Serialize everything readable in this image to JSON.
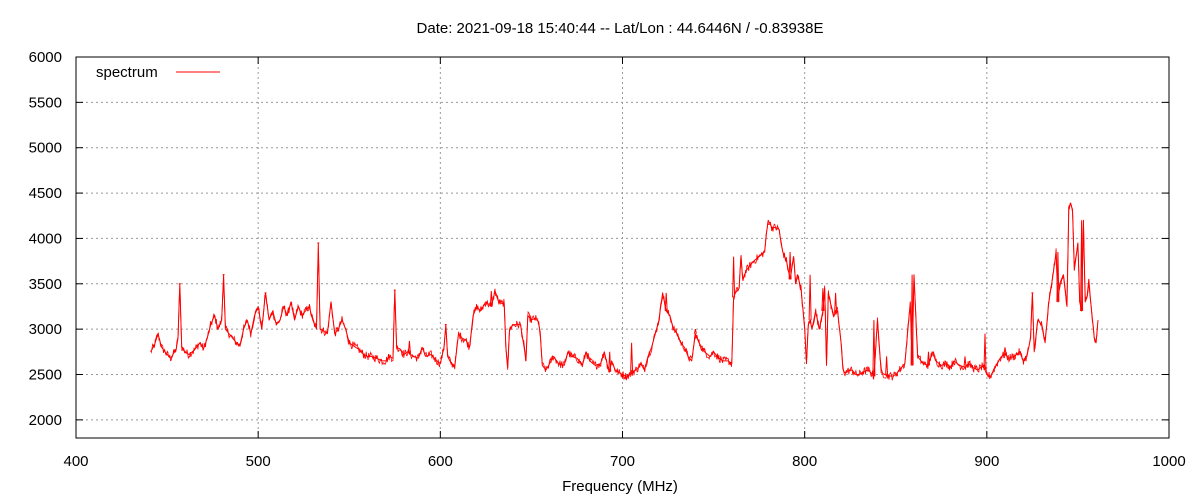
{
  "chart_data": {
    "type": "line",
    "title": "Date: 2021-09-18 15:40:44  --  Lat/Lon : 44.6446N / -0.83938E",
    "xlabel": "Frequency (MHz)",
    "ylabel": "",
    "xlim": [
      400,
      1000
    ],
    "ylim": [
      1800,
      6000
    ],
    "xticks": [
      400,
      500,
      600,
      700,
      800,
      900,
      1000
    ],
    "yticks": [
      2000,
      2500,
      3000,
      3500,
      4000,
      4500,
      5000,
      5500,
      6000
    ],
    "grid": true,
    "legend_position": "top-left",
    "series": [
      {
        "name": "spectrum",
        "color": "#ff0000",
        "x": [
          441,
          443,
          445,
          447,
          450,
          452,
          455,
          456,
          457,
          458,
          460,
          462,
          465,
          468,
          470,
          472,
          474,
          476,
          478,
          480,
          481,
          482,
          484,
          486,
          488,
          490,
          492,
          494,
          496,
          498,
          500,
          502,
          504,
          506,
          508,
          510,
          512,
          514,
          516,
          518,
          520,
          522,
          524,
          526,
          528,
          530,
          532,
          533,
          534,
          536,
          538,
          540,
          542,
          544,
          546,
          548,
          550,
          552,
          555,
          558,
          560,
          562,
          565,
          568,
          570,
          572,
          574,
          575,
          576,
          578,
          580,
          582,
          585,
          588,
          590,
          592,
          595,
          598,
          600,
          602,
          603,
          604,
          606,
          608,
          610,
          612,
          614,
          616,
          618,
          620,
          622,
          625,
          628,
          630,
          632,
          634,
          635,
          636,
          637,
          638,
          640,
          642,
          644,
          646,
          647,
          648,
          650,
          652,
          654,
          655,
          656,
          658,
          660,
          662,
          665,
          668,
          670,
          672,
          675,
          678,
          680,
          682,
          685,
          688,
          690,
          692,
          693,
          694,
          696,
          698,
          700,
          702,
          704,
          706,
          708,
          710,
          712,
          714,
          716,
          718,
          720,
          722,
          724,
          726,
          728,
          730,
          732,
          734,
          736,
          738,
          740,
          742,
          745,
          748,
          750,
          752,
          755,
          758,
          760,
          761,
          762,
          764,
          765,
          766,
          768,
          770,
          772,
          775,
          778,
          779,
          780,
          782,
          784,
          786,
          787,
          788,
          790,
          792,
          794,
          795,
          796,
          798,
          800,
          801,
          802,
          803,
          804,
          806,
          808,
          810,
          811,
          812,
          813,
          814,
          816,
          818,
          820,
          821,
          822,
          824,
          826,
          828,
          830,
          832,
          835,
          838,
          840,
          842,
          845,
          848,
          850,
          852,
          855,
          858,
          859,
          860,
          862,
          865,
          868,
          870,
          872,
          875,
          878,
          880,
          882,
          885,
          888,
          890,
          892,
          895,
          898,
          900,
          902,
          905,
          908,
          910,
          912,
          915,
          918,
          920,
          922,
          924,
          925,
          926,
          928,
          930,
          932,
          934,
          936,
          938,
          939,
          940,
          942,
          944,
          945,
          946,
          947,
          948,
          950,
          951,
          952,
          953,
          954,
          955,
          956,
          957,
          958,
          959,
          960,
          961
        ],
        "values": [
          2750,
          2820,
          2950,
          2800,
          2720,
          2680,
          2780,
          2900,
          3500,
          2800,
          2750,
          2720,
          2770,
          2850,
          2780,
          2900,
          3050,
          3150,
          3000,
          3100,
          3600,
          3000,
          2950,
          2900,
          2850,
          2820,
          3000,
          3100,
          2950,
          3150,
          3250,
          3000,
          3400,
          3100,
          3200,
          3050,
          3100,
          3250,
          3150,
          3300,
          3100,
          3250,
          3150,
          3200,
          3250,
          3100,
          3000,
          3950,
          3000,
          2980,
          2950,
          3300,
          2950,
          3000,
          3100,
          3000,
          2850,
          2820,
          2780,
          2720,
          2700,
          2700,
          2680,
          2650,
          2650,
          2700,
          2680,
          3430,
          2800,
          2780,
          2720,
          2750,
          2700,
          2680,
          2800,
          2700,
          2720,
          2650,
          2620,
          2800,
          3050,
          2700,
          2620,
          2600,
          2950,
          2900,
          2880,
          2800,
          3150,
          3250,
          3200,
          3300,
          3250,
          3420,
          3300,
          3280,
          3300,
          2800,
          2580,
          3000,
          3050,
          3050,
          3050,
          2800,
          2650,
          3150,
          3100,
          3120,
          3080,
          2900,
          2600,
          2550,
          2620,
          2700,
          2620,
          2600,
          2750,
          2700,
          2680,
          2600,
          2750,
          2650,
          2600,
          2620,
          2750,
          2580,
          2530,
          2650,
          2550,
          2520,
          2500,
          2480,
          2500,
          2530,
          2560,
          2620,
          2550,
          2700,
          2800,
          2950,
          3100,
          3400,
          3200,
          3150,
          3000,
          2950,
          2850,
          2800,
          2700,
          2650,
          2950,
          2850,
          2750,
          2700,
          2750,
          2700,
          2650,
          2650,
          2620,
          3350,
          3400,
          3450,
          3800,
          3550,
          3650,
          3700,
          3750,
          3800,
          3850,
          4050,
          4200,
          4120,
          4120,
          4100,
          3950,
          3850,
          3750,
          3550,
          3800,
          3500,
          3600,
          3450,
          3000,
          2620,
          3050,
          3100,
          3000,
          3200,
          3000,
          3200,
          3450,
          2600,
          3400,
          3300,
          3150,
          3200,
          2850,
          2560,
          2520,
          2540,
          2550,
          2500,
          2500,
          2530,
          2550,
          2480,
          3100,
          2520,
          2490,
          2480,
          2500,
          2550,
          2620,
          3300,
          2600,
          3600,
          2700,
          2620,
          2600,
          2750,
          2650,
          2600,
          2620,
          2580,
          2650,
          2600,
          2580,
          2620,
          2580,
          2550,
          2600,
          2500,
          2480,
          2600,
          2700,
          2720,
          2680,
          2700,
          2750,
          2650,
          2700,
          2900,
          3400,
          2750,
          3100,
          3050,
          2850,
          3300,
          3550,
          3850,
          3300,
          3500,
          3600,
          3250,
          4350,
          4380,
          4320,
          3650,
          3950,
          3300,
          3200,
          4200,
          3300,
          3350,
          3550,
          3300,
          3100,
          2900,
          2850,
          3100
        ],
        "spikes": [
          {
            "x": 457,
            "y": 3500
          },
          {
            "x": 481,
            "y": 3600
          },
          {
            "x": 504,
            "y": 3400
          },
          {
            "x": 533,
            "y": 3950
          },
          {
            "x": 575,
            "y": 3430
          },
          {
            "x": 583,
            "y": 2870
          },
          {
            "x": 603,
            "y": 3050
          },
          {
            "x": 628,
            "y": 3420
          },
          {
            "x": 693,
            "y": 2750
          },
          {
            "x": 705,
            "y": 2850
          },
          {
            "x": 724,
            "y": 3400
          },
          {
            "x": 740,
            "y": 3000
          },
          {
            "x": 761,
            "y": 3800
          },
          {
            "x": 792,
            "y": 3850
          },
          {
            "x": 803,
            "y": 3600
          },
          {
            "x": 810,
            "y": 3450
          },
          {
            "x": 817,
            "y": 3400
          },
          {
            "x": 838,
            "y": 3100
          },
          {
            "x": 845,
            "y": 2700
          },
          {
            "x": 859,
            "y": 3600
          },
          {
            "x": 868,
            "y": 2750
          },
          {
            "x": 888,
            "y": 2700
          },
          {
            "x": 899,
            "y": 2950
          },
          {
            "x": 910,
            "y": 2800
          },
          {
            "x": 925,
            "y": 3400
          },
          {
            "x": 939,
            "y": 3850
          },
          {
            "x": 952,
            "y": 4200
          }
        ]
      }
    ]
  }
}
